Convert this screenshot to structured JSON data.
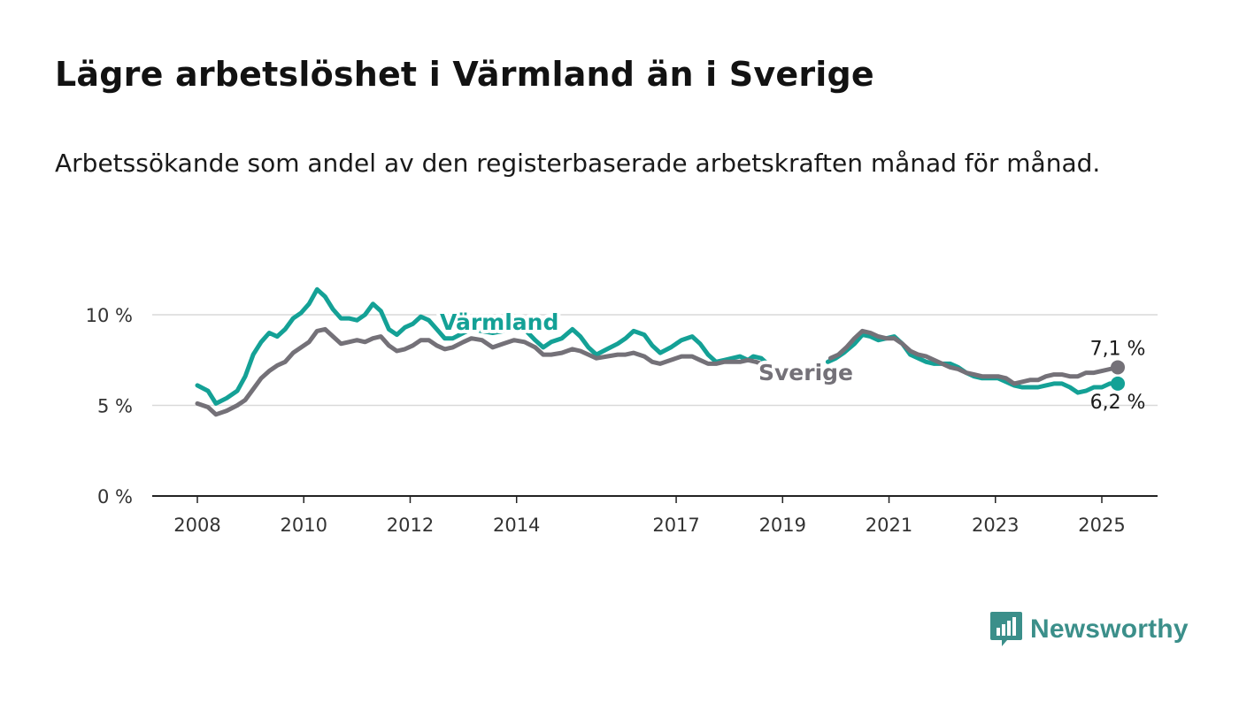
{
  "title": "Lägre arbetslöshet i Värmland än i Sverige",
  "subtitle": "Arbetssökande som andel av den registerbaserade arbetskraften månad för månad.",
  "brand": {
    "name": "Newsworthy",
    "color": "#3b8f8a",
    "icon": "bar-chart-bubble-icon"
  },
  "chart_data": {
    "type": "line",
    "title": "Lägre arbetslöshet i Värmland än i Sverige",
    "subtitle": "Arbetssökande som andel av den registerbaserade arbetskraften månad för månad.",
    "xlabel": "",
    "ylabel": "",
    "xlim": [
      2007.6,
      2026.2
    ],
    "ylim": [
      0,
      10
    ],
    "x_ticks": [
      2008,
      2010,
      2012,
      2014,
      2017,
      2019,
      2021,
      2023,
      2025
    ],
    "y_ticks": [
      0,
      5,
      10
    ],
    "y_tick_labels": [
      "0 %",
      "5 %",
      "10 %"
    ],
    "grid": true,
    "legend": "inline labels",
    "series": [
      {
        "name": "Värmland",
        "color": "#14a196",
        "end_label": "6,2 %",
        "points": [
          [
            2008.0,
            6.1
          ],
          [
            2008.2,
            5.8
          ],
          [
            2008.35,
            5.1
          ],
          [
            2008.55,
            5.4
          ],
          [
            2008.75,
            5.8
          ],
          [
            2008.9,
            6.6
          ],
          [
            2009.05,
            7.8
          ],
          [
            2009.2,
            8.5
          ],
          [
            2009.35,
            9.0
          ],
          [
            2009.5,
            8.8
          ],
          [
            2009.65,
            9.2
          ],
          [
            2009.8,
            9.8
          ],
          [
            2009.95,
            10.1
          ],
          [
            2010.1,
            10.6
          ],
          [
            2010.25,
            11.4
          ],
          [
            2010.4,
            11.0
          ],
          [
            2010.55,
            10.3
          ],
          [
            2010.7,
            9.8
          ],
          [
            2010.85,
            9.8
          ],
          [
            2011.0,
            9.7
          ],
          [
            2011.15,
            10.0
          ],
          [
            2011.3,
            10.6
          ],
          [
            2011.45,
            10.2
          ],
          [
            2011.6,
            9.2
          ],
          [
            2011.75,
            8.9
          ],
          [
            2011.9,
            9.3
          ],
          [
            2012.05,
            9.5
          ],
          [
            2012.2,
            9.9
          ],
          [
            2012.35,
            9.7
          ],
          [
            2012.5,
            9.2
          ],
          [
            2012.65,
            8.7
          ],
          [
            2012.8,
            8.7
          ],
          [
            2013.0,
            9.0
          ],
          [
            2013.15,
            9.2
          ],
          [
            2013.35,
            9.1
          ],
          [
            2013.55,
            9.0
          ],
          [
            2013.75,
            9.1
          ],
          [
            2013.95,
            9.3
          ],
          [
            2014.15,
            9.2
          ],
          [
            2014.35,
            8.6
          ],
          [
            2014.5,
            8.2
          ],
          [
            2014.65,
            8.5
          ],
          [
            2014.85,
            8.7
          ],
          [
            2015.05,
            9.2
          ],
          [
            2015.2,
            8.8
          ],
          [
            2015.35,
            8.2
          ],
          [
            2015.5,
            7.8
          ],
          [
            2015.7,
            8.1
          ],
          [
            2015.9,
            8.4
          ],
          [
            2016.05,
            8.7
          ],
          [
            2016.2,
            9.1
          ],
          [
            2016.4,
            8.9
          ],
          [
            2016.55,
            8.3
          ],
          [
            2016.7,
            7.9
          ],
          [
            2016.9,
            8.2
          ],
          [
            2017.1,
            8.6
          ],
          [
            2017.3,
            8.8
          ],
          [
            2017.45,
            8.4
          ],
          [
            2017.6,
            7.8
          ],
          [
            2017.75,
            7.4
          ],
          [
            2017.9,
            7.5
          ],
          [
            2018.05,
            7.6
          ],
          [
            2018.2,
            7.7
          ],
          [
            2018.35,
            7.5
          ],
          [
            2018.45,
            7.7
          ],
          [
            2018.6,
            7.6
          ],
          [
            2018.75,
            7.2
          ],
          [
            2018.85,
            6.8
          ],
          [
            2018.95,
            6.4
          ],
          null,
          [
            2019.85,
            7.4
          ],
          [
            2020.0,
            7.6
          ],
          [
            2020.15,
            7.9
          ],
          [
            2020.35,
            8.4
          ],
          [
            2020.5,
            8.9
          ],
          [
            2020.65,
            8.8
          ],
          [
            2020.8,
            8.6
          ],
          [
            2020.95,
            8.7
          ],
          [
            2021.1,
            8.8
          ],
          [
            2021.25,
            8.4
          ],
          [
            2021.4,
            7.8
          ],
          [
            2021.55,
            7.6
          ],
          [
            2021.7,
            7.4
          ],
          [
            2021.85,
            7.3
          ],
          [
            2022.0,
            7.3
          ],
          [
            2022.15,
            7.3
          ],
          [
            2022.3,
            7.1
          ],
          [
            2022.45,
            6.8
          ],
          [
            2022.6,
            6.6
          ],
          [
            2022.75,
            6.5
          ],
          [
            2022.9,
            6.5
          ],
          [
            2023.05,
            6.5
          ],
          [
            2023.2,
            6.3
          ],
          [
            2023.35,
            6.1
          ],
          [
            2023.5,
            6.0
          ],
          [
            2023.65,
            6.0
          ],
          [
            2023.8,
            6.0
          ],
          [
            2023.95,
            6.1
          ],
          [
            2024.1,
            6.2
          ],
          [
            2024.25,
            6.2
          ],
          [
            2024.4,
            6.0
          ],
          [
            2024.55,
            5.7
          ],
          [
            2024.7,
            5.8
          ],
          [
            2024.85,
            6.0
          ],
          [
            2025.0,
            6.0
          ],
          [
            2025.15,
            6.2
          ],
          [
            2025.3,
            6.2
          ]
        ]
      },
      {
        "name": "Sverige",
        "color": "#747178",
        "end_label": "7,1 %",
        "points": [
          [
            2008.0,
            5.1
          ],
          [
            2008.2,
            4.9
          ],
          [
            2008.35,
            4.5
          ],
          [
            2008.55,
            4.7
          ],
          [
            2008.75,
            5.0
          ],
          [
            2008.9,
            5.3
          ],
          [
            2009.05,
            5.9
          ],
          [
            2009.2,
            6.5
          ],
          [
            2009.35,
            6.9
          ],
          [
            2009.5,
            7.2
          ],
          [
            2009.65,
            7.4
          ],
          [
            2009.8,
            7.9
          ],
          [
            2009.95,
            8.2
          ],
          [
            2010.1,
            8.5
          ],
          [
            2010.25,
            9.1
          ],
          [
            2010.4,
            9.2
          ],
          [
            2010.55,
            8.8
          ],
          [
            2010.7,
            8.4
          ],
          [
            2010.85,
            8.5
          ],
          [
            2011.0,
            8.6
          ],
          [
            2011.15,
            8.5
          ],
          [
            2011.3,
            8.7
          ],
          [
            2011.45,
            8.8
          ],
          [
            2011.6,
            8.3
          ],
          [
            2011.75,
            8.0
          ],
          [
            2011.9,
            8.1
          ],
          [
            2012.05,
            8.3
          ],
          [
            2012.2,
            8.6
          ],
          [
            2012.35,
            8.6
          ],
          [
            2012.5,
            8.3
          ],
          [
            2012.65,
            8.1
          ],
          [
            2012.8,
            8.2
          ],
          [
            2013.0,
            8.5
          ],
          [
            2013.15,
            8.7
          ],
          [
            2013.35,
            8.6
          ],
          [
            2013.55,
            8.2
          ],
          [
            2013.75,
            8.4
          ],
          [
            2013.95,
            8.6
          ],
          [
            2014.15,
            8.5
          ],
          [
            2014.35,
            8.2
          ],
          [
            2014.5,
            7.8
          ],
          [
            2014.65,
            7.8
          ],
          [
            2014.85,
            7.9
          ],
          [
            2015.05,
            8.1
          ],
          [
            2015.2,
            8.0
          ],
          [
            2015.35,
            7.8
          ],
          [
            2015.5,
            7.6
          ],
          [
            2015.7,
            7.7
          ],
          [
            2015.9,
            7.8
          ],
          [
            2016.05,
            7.8
          ],
          [
            2016.2,
            7.9
          ],
          [
            2016.4,
            7.7
          ],
          [
            2016.55,
            7.4
          ],
          [
            2016.7,
            7.3
          ],
          [
            2016.9,
            7.5
          ],
          [
            2017.1,
            7.7
          ],
          [
            2017.3,
            7.7
          ],
          [
            2017.45,
            7.5
          ],
          [
            2017.6,
            7.3
          ],
          [
            2017.75,
            7.3
          ],
          [
            2017.9,
            7.4
          ],
          [
            2018.05,
            7.4
          ],
          [
            2018.2,
            7.4
          ],
          [
            2018.35,
            7.5
          ],
          [
            2018.5,
            7.4
          ],
          [
            2018.6,
            7.3
          ],
          null,
          [
            2019.9,
            7.6
          ],
          [
            2020.05,
            7.8
          ],
          [
            2020.2,
            8.2
          ],
          [
            2020.35,
            8.7
          ],
          [
            2020.5,
            9.1
          ],
          [
            2020.65,
            9.0
          ],
          [
            2020.8,
            8.8
          ],
          [
            2020.95,
            8.7
          ],
          [
            2021.1,
            8.7
          ],
          [
            2021.25,
            8.4
          ],
          [
            2021.4,
            8.0
          ],
          [
            2021.55,
            7.8
          ],
          [
            2021.7,
            7.7
          ],
          [
            2021.85,
            7.5
          ],
          [
            2022.0,
            7.3
          ],
          [
            2022.15,
            7.1
          ],
          [
            2022.3,
            7.0
          ],
          [
            2022.45,
            6.8
          ],
          [
            2022.6,
            6.7
          ],
          [
            2022.75,
            6.6
          ],
          [
            2022.9,
            6.6
          ],
          [
            2023.05,
            6.6
          ],
          [
            2023.2,
            6.5
          ],
          [
            2023.35,
            6.2
          ],
          [
            2023.5,
            6.3
          ],
          [
            2023.65,
            6.4
          ],
          [
            2023.8,
            6.4
          ],
          [
            2023.95,
            6.6
          ],
          [
            2024.1,
            6.7
          ],
          [
            2024.25,
            6.7
          ],
          [
            2024.4,
            6.6
          ],
          [
            2024.55,
            6.6
          ],
          [
            2024.7,
            6.8
          ],
          [
            2024.85,
            6.8
          ],
          [
            2025.0,
            6.9
          ],
          [
            2025.15,
            7.0
          ],
          [
            2025.3,
            7.1
          ]
        ]
      }
    ]
  }
}
